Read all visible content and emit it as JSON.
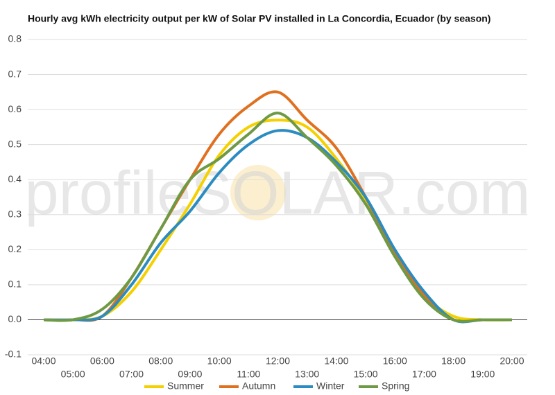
{
  "chart_data": {
    "type": "line",
    "title": "Hourly avg kWh electricity output per kW of Solar PV installed in La Concordia, Ecuador (by season)",
    "watermark": "profileSOLAR.com",
    "categories": [
      "04:00",
      "05:00",
      "06:00",
      "07:00",
      "08:00",
      "09:00",
      "10:00",
      "11:00",
      "12:00",
      "13:00",
      "14:00",
      "15:00",
      "16:00",
      "17:00",
      "18:00",
      "19:00",
      "20:00"
    ],
    "series": [
      {
        "name": "Summer",
        "color": "#f5d000",
        "values": [
          0,
          0,
          0.01,
          0.08,
          0.2,
          0.33,
          0.47,
          0.55,
          0.57,
          0.55,
          0.46,
          0.34,
          0.19,
          0.07,
          0.01,
          0,
          0
        ]
      },
      {
        "name": "Autumn",
        "color": "#e0701f",
        "values": [
          0,
          0,
          0.01,
          0.12,
          0.26,
          0.4,
          0.53,
          0.61,
          0.65,
          0.57,
          0.49,
          0.35,
          0.19,
          0.07,
          0,
          0,
          0
        ]
      },
      {
        "name": "Winter",
        "color": "#2a8cc0",
        "values": [
          0,
          0,
          0.01,
          0.1,
          0.22,
          0.31,
          0.42,
          0.5,
          0.54,
          0.52,
          0.45,
          0.35,
          0.2,
          0.08,
          0,
          0,
          0
        ]
      },
      {
        "name": "Spring",
        "color": "#6e9a45",
        "values": [
          0,
          0,
          0.03,
          0.12,
          0.26,
          0.4,
          0.46,
          0.53,
          0.59,
          0.52,
          0.44,
          0.33,
          0.18,
          0.06,
          0,
          0,
          0
        ]
      }
    ],
    "ylim": [
      -0.1,
      0.8
    ],
    "yticks": [
      -0.1,
      {
        "value": 0,
        "label": "0.0"
      },
      0.1,
      0.2,
      0.3,
      0.4,
      0.5,
      0.6,
      0.7,
      0.8
    ],
    "grid": true,
    "legend": "bottom"
  }
}
